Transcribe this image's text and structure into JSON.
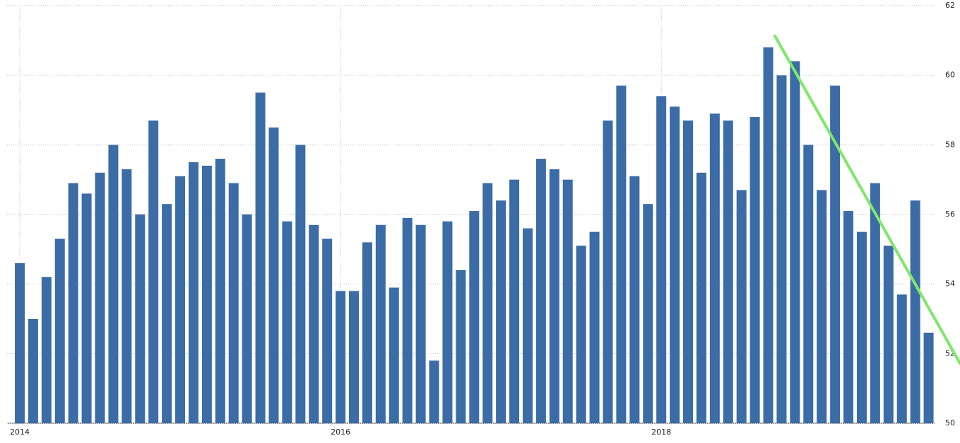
{
  "chart_data": {
    "type": "bar",
    "categories": [
      "2014",
      null,
      null,
      null,
      null,
      null,
      null,
      null,
      null,
      null,
      null,
      null,
      null,
      null,
      null,
      null,
      null,
      null,
      null,
      null,
      null,
      null,
      null,
      null,
      "2016",
      null,
      null,
      null,
      null,
      null,
      null,
      null,
      null,
      null,
      null,
      null,
      null,
      null,
      null,
      null,
      null,
      null,
      null,
      null,
      null,
      null,
      null,
      null,
      "2018",
      null,
      null,
      null,
      null,
      null,
      null,
      null,
      null,
      null,
      null,
      null,
      null,
      null,
      null,
      null,
      null,
      null,
      null,
      null,
      null
    ],
    "values": [
      54.6,
      53.0,
      54.2,
      55.3,
      56.9,
      56.6,
      57.2,
      58.0,
      57.3,
      56.0,
      58.7,
      56.3,
      57.1,
      57.5,
      57.4,
      57.6,
      56.9,
      56.0,
      59.5,
      58.5,
      55.8,
      58.0,
      55.7,
      55.3,
      53.8,
      53.8,
      55.2,
      55.7,
      53.9,
      55.9,
      55.7,
      51.8,
      55.8,
      54.4,
      56.1,
      56.9,
      56.4,
      57.0,
      55.6,
      57.6,
      57.3,
      57.0,
      55.1,
      55.5,
      58.7,
      59.7,
      57.1,
      56.3,
      59.4,
      59.1,
      58.7,
      57.2,
      58.9,
      58.7,
      56.7,
      58.8,
      60.8,
      60.0,
      60.4,
      58.0,
      56.7,
      59.7,
      56.1,
      55.5,
      56.9,
      55.1,
      53.7,
      56.4,
      52.6
    ],
    "color": "#3b6ca6",
    "ylim": [
      50,
      62
    ],
    "yticks": [
      50,
      52,
      54,
      56,
      58,
      60,
      62
    ],
    "grid": true
  }
}
